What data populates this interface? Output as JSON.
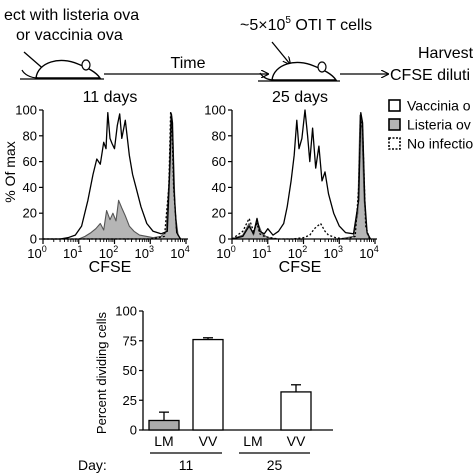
{
  "schematic": {
    "infect_line1": "ect with listeria ova",
    "infect_line2": "or vaccinia ova",
    "time_label": "Time",
    "transfer_label_prefix": "~5×10",
    "transfer_label_exp": "5",
    "transfer_label_suffix": " OTI T cells",
    "harvest_line1": "Harvest",
    "harvest_line2": "CFSE diluti",
    "day_left": "11 days",
    "day_right": "25 days"
  },
  "legend": {
    "items": [
      {
        "label": "Vaccinia o",
        "style": "solid-open"
      },
      {
        "label": "Listeria ov",
        "style": "gray-filled"
      },
      {
        "label": "No infectio",
        "style": "dotted"
      }
    ]
  },
  "chart_data": [
    {
      "type": "area",
      "ylabel": "% Of max",
      "xlabel": "CFSE",
      "x_scale": "log",
      "xlim": [
        1,
        10000
      ],
      "ylim": [
        0,
        100
      ],
      "y_ticks": [
        "0",
        "20",
        "40",
        "60",
        "80",
        "100"
      ],
      "x_ticks": [
        {
          "base": "10",
          "exp": "0"
        },
        {
          "base": "10",
          "exp": "1"
        },
        {
          "base": "10",
          "exp": "2"
        },
        {
          "base": "10",
          "exp": "3"
        },
        {
          "base": "10",
          "exp": "4"
        }
      ],
      "series": [
        {
          "style": "solid-open",
          "x": [
            1,
            3,
            5,
            8,
            12,
            18,
            25,
            32,
            40,
            50,
            58,
            65,
            75,
            85,
            100,
            120,
            140,
            160,
            200,
            260,
            320,
            400,
            550,
            800,
            1200,
            2000,
            3000,
            3600,
            3900,
            4200,
            4600,
            5500,
            7000
          ],
          "y": [
            0,
            0,
            1,
            3,
            10,
            30,
            50,
            62,
            58,
            75,
            70,
            98,
            78,
            74,
            70,
            88,
            97,
            78,
            92,
            65,
            50,
            40,
            25,
            12,
            6,
            4,
            6,
            60,
            97,
            90,
            40,
            5,
            0
          ]
        },
        {
          "style": "gray-filled",
          "x": [
            1,
            10,
            15,
            22,
            30,
            40,
            50,
            60,
            75,
            90,
            110,
            130,
            160,
            200,
            260,
            350,
            500,
            800,
            1200,
            2000,
            2800,
            3400,
            3800,
            4300,
            5000,
            6000,
            7000
          ],
          "y": [
            0,
            0,
            2,
            5,
            8,
            12,
            7,
            22,
            15,
            20,
            14,
            30,
            24,
            18,
            10,
            6,
            3,
            2,
            1,
            2,
            6,
            50,
            98,
            80,
            20,
            3,
            0
          ]
        },
        {
          "style": "dotted",
          "x": [
            1,
            1000,
            2500,
            3300,
            3700,
            4000,
            4500,
            5500,
            7000
          ],
          "y": [
            0,
            0,
            2,
            40,
            98,
            94,
            40,
            5,
            0
          ]
        }
      ]
    },
    {
      "type": "area",
      "ylabel": "",
      "xlabel": "CFSE",
      "x_scale": "log",
      "xlim": [
        1,
        10000
      ],
      "ylim": [
        0,
        100
      ],
      "y_ticks": [
        "0",
        "20",
        "40",
        "60",
        "80",
        "100"
      ],
      "x_ticks": [
        {
          "base": "10",
          "exp": "0"
        },
        {
          "base": "10",
          "exp": "1"
        },
        {
          "base": "10",
          "exp": "2"
        },
        {
          "base": "10",
          "exp": "3"
        },
        {
          "base": "10",
          "exp": "4"
        }
      ],
      "series": [
        {
          "style": "solid-open",
          "x": [
            1,
            2,
            3,
            4,
            5,
            6,
            8,
            10,
            14,
            20,
            28,
            35,
            45,
            55,
            65,
            75,
            90,
            110,
            130,
            150,
            180,
            220,
            270,
            330,
            400,
            500,
            700,
            1000,
            1500,
            2500,
            3500,
            4000,
            4500,
            5200,
            6000,
            7500
          ],
          "y": [
            0,
            2,
            10,
            4,
            16,
            6,
            4,
            8,
            3,
            6,
            12,
            25,
            45,
            65,
            92,
            70,
            78,
            100,
            80,
            60,
            86,
            55,
            72,
            45,
            52,
            35,
            20,
            10,
            5,
            4,
            30,
            98,
            90,
            30,
            5,
            0
          ]
        },
        {
          "style": "gray-filled",
          "x": [
            1,
            2,
            3,
            4,
            5,
            7,
            10,
            20,
            50,
            100,
            500,
            1000,
            2500,
            3300,
            3800,
            4300,
            5000,
            6000,
            7500
          ],
          "y": [
            0,
            3,
            12,
            3,
            14,
            4,
            1,
            0,
            0,
            0,
            0,
            0,
            2,
            20,
            96,
            85,
            30,
            4,
            0
          ]
        },
        {
          "style": "dotted",
          "x": [
            1,
            2,
            3,
            4,
            5,
            6,
            8,
            12,
            20,
            50,
            100,
            150,
            200,
            300,
            400,
            500,
            800,
            1500,
            2800,
            3500,
            4000,
            4500,
            5500,
            7000
          ],
          "y": [
            0,
            6,
            16,
            6,
            12,
            4,
            2,
            1,
            0,
            0,
            1,
            3,
            8,
            12,
            6,
            3,
            1,
            0,
            2,
            40,
            97,
            85,
            10,
            0
          ]
        }
      ]
    },
    {
      "type": "bar",
      "ylabel": "Percent dividing cells",
      "ylim": [
        0,
        100
      ],
      "y_ticks": [
        "0",
        "25",
        "50",
        "75",
        "100"
      ],
      "categories": [
        "LM",
        "VV",
        "LM",
        "VV"
      ],
      "values": [
        8,
        76,
        0,
        32
      ],
      "errors": [
        7,
        1.5,
        0,
        6
      ],
      "fills": [
        "#aaaaaa",
        "#ffffff",
        "#aaaaaa",
        "#ffffff"
      ],
      "day_prefix": "Day:",
      "day_groups": [
        "11",
        "25"
      ]
    }
  ]
}
